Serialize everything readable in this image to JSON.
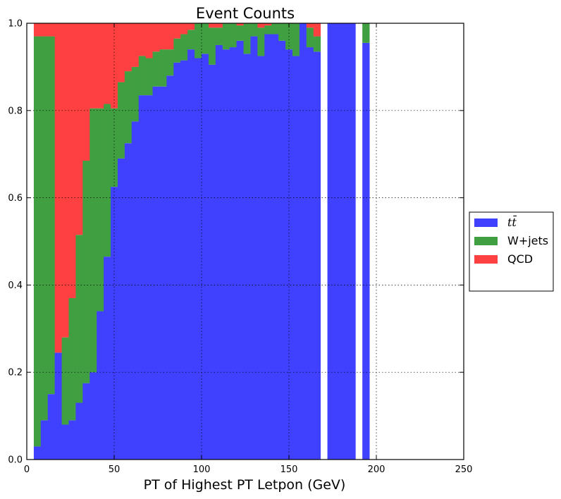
{
  "chart_data": {
    "type": "bar",
    "stacked": true,
    "title": "Event Counts",
    "xlabel": "PT of Highest PT Letpon (GeV)",
    "ylabel": "",
    "xlim": [
      0,
      250
    ],
    "ylim": [
      0,
      1
    ],
    "xticks": [
      "0",
      "50",
      "100",
      "150",
      "200",
      "250"
    ],
    "yticks": [
      "0.0",
      "0.2",
      "0.4",
      "0.6",
      "0.8",
      "1.0"
    ],
    "grid": true,
    "legend_position": "right",
    "bin_width": 4,
    "x": [
      4,
      8,
      12,
      16,
      20,
      24,
      28,
      32,
      36,
      40,
      44,
      48,
      52,
      56,
      60,
      64,
      68,
      72,
      76,
      80,
      84,
      88,
      92,
      96,
      100,
      104,
      108,
      112,
      116,
      120,
      124,
      128,
      132,
      136,
      140,
      144,
      148,
      152,
      156,
      160,
      164,
      168,
      172,
      176,
      180,
      184,
      188,
      192,
      196,
      200
    ],
    "series": [
      {
        "name": "tt̄",
        "color": "#4040ff",
        "values": [
          0.03,
          0.09,
          0.15,
          0.245,
          0.08,
          0.09,
          0.13,
          0.175,
          0.2,
          0.34,
          0.465,
          0.625,
          0.69,
          0.725,
          0.775,
          0.835,
          0.835,
          0.855,
          0.855,
          0.88,
          0.91,
          0.915,
          0.94,
          0.92,
          0.93,
          0.905,
          0.95,
          0.94,
          0.945,
          0.96,
          0.93,
          0.97,
          0.925,
          0.975,
          0.975,
          0.96,
          0.94,
          0.925,
          1.0,
          0.945,
          0.935,
          0,
          1.0,
          1.0,
          1.0,
          1.0,
          0,
          0.955,
          0,
          0
        ]
      },
      {
        "name": "W+jets",
        "color": "#409f40",
        "values": [
          0.94,
          0.88,
          0.82,
          0,
          0.2,
          0.28,
          0.385,
          0.51,
          0.605,
          0.465,
          0.35,
          0.18,
          0.175,
          0.165,
          0.125,
          0.09,
          0.085,
          0.08,
          0.085,
          0.06,
          0.055,
          0.06,
          0.045,
          0.08,
          0.07,
          0.085,
          0.04,
          0.06,
          0.055,
          0.035,
          0.07,
          0.03,
          0.065,
          0.02,
          0.025,
          0.04,
          0.06,
          0.075,
          0,
          0.045,
          0.035,
          0,
          0,
          0,
          0,
          0,
          0,
          0.045,
          0,
          0
        ]
      },
      {
        "name": "QCD",
        "color": "#ff4040",
        "values": [
          0.03,
          0.03,
          0.03,
          0.755,
          0.72,
          0.63,
          0.485,
          0.315,
          0.195,
          0.195,
          0.185,
          0.195,
          0.135,
          0.11,
          0.1,
          0.075,
          0.08,
          0.065,
          0.06,
          0.06,
          0.035,
          0.025,
          0.015,
          0,
          0,
          0.01,
          0.01,
          0,
          0,
          0.005,
          0,
          0,
          0.01,
          0.005,
          0,
          0,
          0,
          0,
          0,
          0.01,
          0.03,
          0,
          0,
          0,
          0,
          0,
          0,
          0,
          0,
          0
        ]
      }
    ]
  }
}
